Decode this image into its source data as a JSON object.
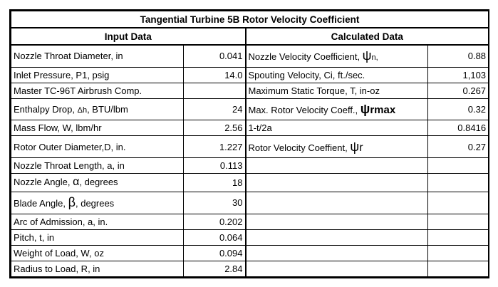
{
  "title": "Tangential Turbine 5B Rotor Velocity Coefficient",
  "input_header": "Input Data",
  "calc_header": "Calculated Data",
  "rows": [
    {
      "in_label": "Nozzle Throat Diameter, in",
      "in_value": "0.041",
      "calc_label_pre": "Nozzle Velocity Coefficient, ",
      "calc_sym": "ψ",
      "calc_sym_post": "n,",
      "calc_value": "0.88"
    },
    {
      "in_label": "Inlet Pressure, P1, psig",
      "in_value": "14.0",
      "calc_label_pre": "Spouting Velocity, Ci, ft./sec.",
      "calc_value": "1,103"
    },
    {
      "in_label": "Master TC-96T Airbrush Comp.",
      "in_value": "",
      "calc_label_pre": "Maximum Static Torque, T, in-oz",
      "calc_value": "0.267"
    },
    {
      "in_label_pre": "Enthalpy Drop, ",
      "in_sym": "Δh",
      "in_label_post": ", BTU/lbm",
      "in_value": "24",
      "calc_label_pre": "Max. Rotor Velocity Coeff., ",
      "calc_sym": "ψ",
      "calc_sym_post": "rmax",
      "calc_value": "0.32"
    },
    {
      "in_label": "Mass Flow, W, lbm/hr",
      "in_value": "2.56",
      "calc_label_pre": "1-t/2a",
      "calc_value": "0.8416"
    },
    {
      "in_label": "Rotor Outer Diameter,D, in.",
      "in_value": "1.227",
      "calc_label_pre": "Rotor Velocity Coeffient, ",
      "calc_sym": "ψ",
      "calc_sym_post": "r",
      "calc_value": "0.27"
    },
    {
      "in_label": "Nozzle Throat Length, a, in",
      "in_value": "0.113"
    },
    {
      "in_label_pre": "Nozzle Angle, ",
      "in_sym": "α",
      "in_label_post": ", degrees",
      "in_value": "18"
    },
    {
      "in_label_pre": "Blade Angle, ",
      "in_sym": "β",
      "in_label_post": ", degrees",
      "in_value": "30"
    },
    {
      "in_label": "Arc of Admission, a, in.",
      "in_value": "0.202"
    },
    {
      "in_label": "Pitch, t, in",
      "in_value": "0.064"
    },
    {
      "in_label": "Weight of Load, W, oz",
      "in_value": "0.094"
    },
    {
      "in_label": "Radius to Load, R, in",
      "in_value": "2.84"
    }
  ]
}
